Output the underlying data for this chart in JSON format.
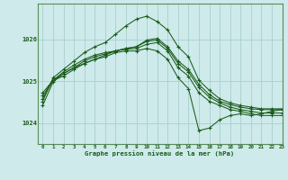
{
  "title": "Graphe pression niveau de la mer (hPa)",
  "bg_color": "#ceeaea",
  "grid_color": "#aacfcf",
  "line_color": "#1a5c1a",
  "xlim": [
    -0.5,
    23
  ],
  "ylim": [
    1023.5,
    1026.85
  ],
  "yticks": [
    1024,
    1025,
    1026
  ],
  "xticks": [
    0,
    1,
    2,
    3,
    4,
    5,
    6,
    7,
    8,
    9,
    10,
    11,
    12,
    13,
    14,
    15,
    16,
    17,
    18,
    19,
    20,
    21,
    22,
    23
  ],
  "series": [
    [
      1024.72,
      1025.02,
      1025.12,
      1025.28,
      1025.42,
      1025.52,
      1025.62,
      1025.72,
      1025.78,
      1025.82,
      1025.98,
      1026.02,
      1025.82,
      1025.48,
      1025.28,
      1024.92,
      1024.68,
      1024.52,
      1024.44,
      1024.38,
      1024.34,
      1024.32,
      1024.32,
      1024.32
    ],
    [
      1024.65,
      1025.02,
      1025.18,
      1025.32,
      1025.48,
      1025.58,
      1025.65,
      1025.72,
      1025.78,
      1025.82,
      1025.95,
      1025.98,
      1025.78,
      1025.42,
      1025.22,
      1024.85,
      1024.62,
      1024.48,
      1024.38,
      1024.32,
      1024.28,
      1024.24,
      1024.24,
      1024.24
    ],
    [
      1024.58,
      1025.02,
      1025.22,
      1025.38,
      1025.52,
      1025.62,
      1025.68,
      1025.72,
      1025.76,
      1025.78,
      1025.88,
      1025.92,
      1025.72,
      1025.32,
      1025.12,
      1024.72,
      1024.52,
      1024.42,
      1024.32,
      1024.28,
      1024.22,
      1024.18,
      1024.18,
      1024.18
    ],
    [
      1024.52,
      1025.08,
      1025.28,
      1025.48,
      1025.68,
      1025.82,
      1025.92,
      1026.12,
      1026.32,
      1026.48,
      1026.55,
      1026.42,
      1026.22,
      1025.82,
      1025.58,
      1025.02,
      1024.78,
      1024.58,
      1024.48,
      1024.42,
      1024.38,
      1024.34,
      1024.34,
      1024.34
    ],
    [
      1024.42,
      1024.98,
      1025.18,
      1025.32,
      1025.42,
      1025.52,
      1025.58,
      1025.68,
      1025.72,
      1025.72,
      1025.78,
      1025.72,
      1025.52,
      1025.08,
      1024.82,
      1023.82,
      1023.88,
      1024.08,
      1024.18,
      1024.22,
      1024.18,
      1024.22,
      1024.28,
      1024.32
    ]
  ]
}
